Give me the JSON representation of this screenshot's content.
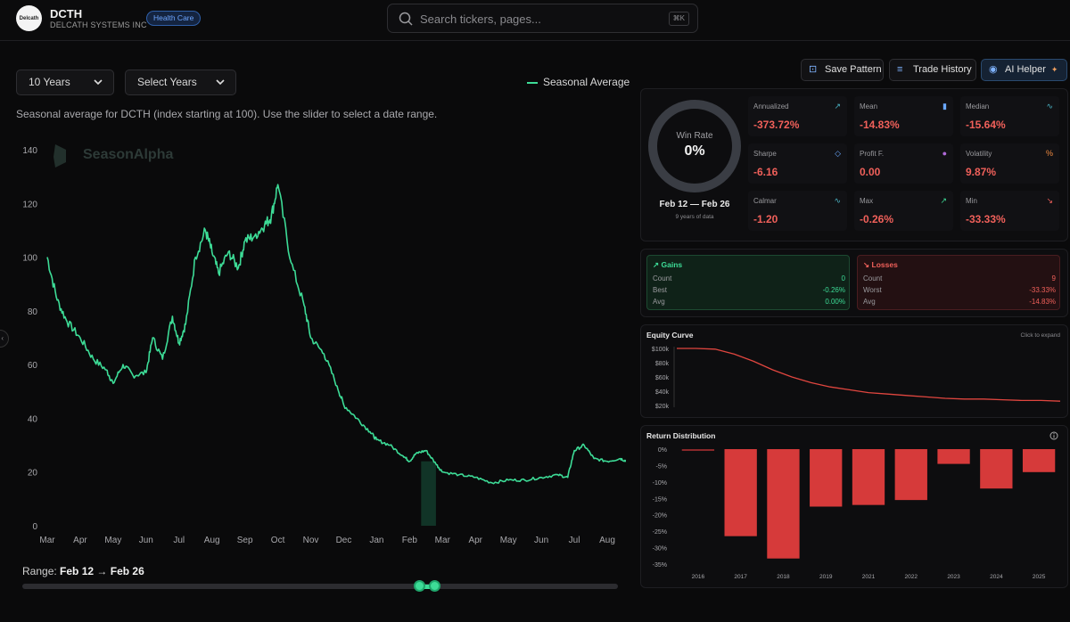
{
  "header": {
    "logo_text": "Delcath",
    "ticker": "DCTH",
    "company": "DELCATH SYSTEMS INC",
    "sector": "Health Care",
    "search_placeholder": "Search tickers, pages...",
    "search_shortcut": "⌘K"
  },
  "controls": {
    "period": "10 Years",
    "years": "Select Years",
    "legend": "Seasonal Average",
    "caption": "Seasonal average for DCTH (index starting at 100). Use the slider to select a date range."
  },
  "toolbar": {
    "save": "Save Pattern",
    "history": "Trade History",
    "ai": "AI Helper"
  },
  "watermark": "SeasonAlpha",
  "range": {
    "label": "Range:",
    "start": "Feb 12",
    "arrow": "→",
    "end": "Feb 26"
  },
  "chart_data": [
    {
      "type": "line",
      "title": "Seasonal Average",
      "x_ticks": [
        "Mar",
        "Apr",
        "May",
        "Jun",
        "Jul",
        "Aug",
        "Sep",
        "Oct",
        "Nov",
        "Dec",
        "Jan",
        "Feb",
        "Mar",
        "Apr",
        "May",
        "Jun",
        "Jul",
        "Aug"
      ],
      "y_ticks": [
        "0",
        "20",
        "40",
        "60",
        "80",
        "100",
        "120",
        "140"
      ],
      "ylim": [
        0,
        140
      ],
      "x": [
        0,
        0.3,
        0.6,
        1,
        1.4,
        1.8,
        2,
        2.3,
        2.6,
        3,
        3.2,
        3.5,
        3.8,
        4,
        4.2,
        4.5,
        4.8,
        5,
        5.2,
        5.5,
        5.8,
        6,
        6.3,
        6.6,
        6.8,
        7,
        7.4,
        7.8,
        8,
        8.4,
        8.8,
        9,
        9.4,
        9.8,
        10,
        10.4,
        10.8,
        11,
        11.2,
        11.5,
        11.8,
        12,
        12.5,
        13,
        13.5,
        14,
        14.5,
        15,
        15.5,
        15.8,
        16,
        16.3,
        16.6,
        17,
        17.4,
        17.6
      ],
      "values": [
        100,
        84,
        76,
        70,
        62,
        58,
        53,
        60,
        56,
        57,
        70,
        62,
        78,
        68,
        75,
        100,
        110,
        102,
        94,
        102,
        96,
        106,
        108,
        112,
        115,
        127,
        98,
        82,
        70,
        64,
        52,
        45,
        40,
        35,
        32,
        30,
        26,
        24,
        27,
        28,
        23,
        20,
        19,
        18,
        16,
        17,
        17,
        18,
        19,
        18,
        28,
        30,
        25,
        24,
        25,
        24
      ],
      "highlight": {
        "start": "Feb 12",
        "end": "Feb 26"
      }
    },
    {
      "type": "line",
      "title": "Equity Curve",
      "y_ticks": [
        "$100k",
        "$80k",
        "$60k",
        "$40k",
        "$20k"
      ],
      "ylim": [
        20000,
        100000
      ],
      "values": [
        100000,
        100000,
        99000,
        92000,
        82000,
        70000,
        60000,
        52000,
        46000,
        42000,
        38000,
        36000,
        34000,
        32000,
        30000,
        29000,
        29000,
        28000,
        27000,
        27000,
        26000
      ]
    },
    {
      "type": "bar",
      "title": "Return Distribution",
      "categories": [
        "2016",
        "2017",
        "2018",
        "2019",
        "2021",
        "2022",
        "2023",
        "2024",
        "2025"
      ],
      "values": [
        -0.2,
        -26.5,
        -33.3,
        -17.5,
        -17,
        -15.5,
        -4.5,
        -12,
        -7
      ],
      "y_ticks": [
        "0%",
        "-5%",
        "-10%",
        "-15%",
        "-20%",
        "-25%",
        "-30%",
        "-35%"
      ],
      "ylim": [
        -35,
        0
      ]
    }
  ],
  "stats": {
    "win_label": "Win Rate",
    "win_value": "0%",
    "win_pct": 0,
    "date_range": "Feb 12 — Feb 26",
    "years_note": "9 years of data",
    "metrics": [
      {
        "label": "Annualized",
        "value": "-373.72%",
        "color": "red",
        "icon": "↗"
      },
      {
        "label": "Mean",
        "value": "-14.83%",
        "color": "red",
        "icon": "▮"
      },
      {
        "label": "Median",
        "value": "-15.64%",
        "color": "red",
        "icon": "∿"
      },
      {
        "label": "Sharpe",
        "value": "-6.16",
        "color": "red",
        "icon": "◇"
      },
      {
        "label": "Profit F.",
        "value": "0.00",
        "color": "red",
        "icon": "●"
      },
      {
        "label": "Volatility",
        "value": "9.87%",
        "color": "red",
        "icon": "%"
      },
      {
        "label": "Calmar",
        "value": "-1.20",
        "color": "red",
        "icon": "∿"
      },
      {
        "label": "Max",
        "value": "-0.26%",
        "color": "red",
        "icon": "↗"
      },
      {
        "label": "Min",
        "value": "-33.33%",
        "color": "red",
        "icon": "↘"
      }
    ]
  },
  "gains": {
    "title": "Gains",
    "count_label": "Count",
    "count": "0",
    "best_label": "Best",
    "best": "-0.26%",
    "avg_label": "Avg",
    "avg": "0.00%"
  },
  "losses": {
    "title": "Losses",
    "count_label": "Count",
    "count": "9",
    "worst_label": "Worst",
    "worst": "-33.33%",
    "avg_label": "Avg",
    "avg": "-14.83%"
  },
  "equity": {
    "title": "Equity Curve",
    "hint": "Click to expand"
  },
  "distribution": {
    "title": "Return Distribution"
  },
  "colors": {
    "accent": "#3ddc97",
    "loss": "#d63a3a",
    "loss_text": "#f0605a"
  }
}
